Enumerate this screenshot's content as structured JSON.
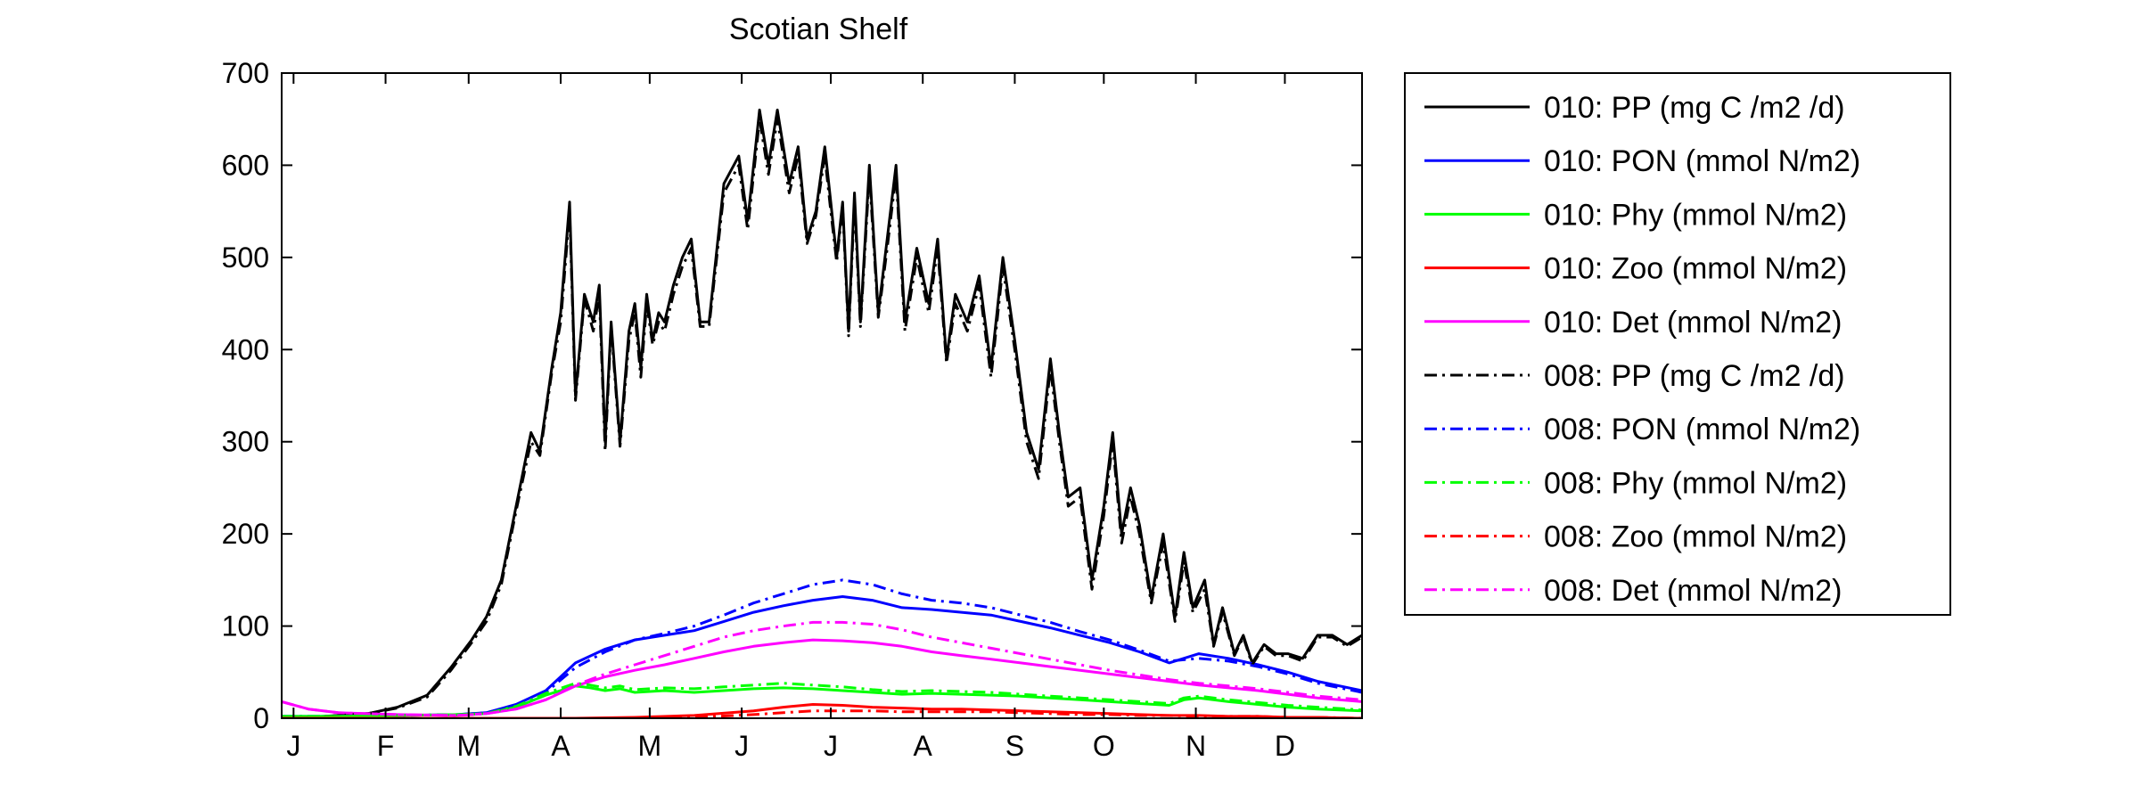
{
  "chart_data": {
    "type": "line",
    "title": "Scotian Shelf",
    "xlabel": "",
    "ylabel": "",
    "x_ticks": [
      "J",
      "F",
      "M",
      "A",
      "M",
      "J",
      "J",
      "A",
      "S",
      "O",
      "N",
      "D"
    ],
    "x_tick_days": [
      5,
      36,
      64,
      95,
      125,
      156,
      186,
      217,
      248,
      278,
      309,
      339
    ],
    "xlim": [
      1,
      365
    ],
    "ylim": [
      0,
      700
    ],
    "y_ticks": [
      0,
      100,
      200,
      300,
      400,
      500,
      600,
      700
    ],
    "grid": false,
    "legend_position": "outside-right",
    "series": [
      {
        "name": "010: PP (mg C /m2 /d)",
        "color": "#000000",
        "dash": "solid",
        "x": [
          1,
          15,
          30,
          40,
          50,
          58,
          65,
          70,
          75,
          80,
          85,
          88,
          92,
          95,
          98,
          100,
          103,
          106,
          108,
          110,
          112,
          115,
          118,
          120,
          122,
          124,
          126,
          128,
          130,
          133,
          136,
          139,
          142,
          145,
          150,
          155,
          158,
          162,
          165,
          168,
          172,
          175,
          178,
          181,
          184,
          186,
          188,
          190,
          192,
          194,
          196,
          199,
          202,
          205,
          208,
          211,
          215,
          219,
          222,
          225,
          228,
          232,
          236,
          240,
          244,
          248,
          252,
          256,
          260,
          263,
          266,
          270,
          274,
          278,
          281,
          284,
          287,
          290,
          294,
          298,
          302,
          305,
          308,
          312,
          315,
          318,
          322,
          325,
          328,
          332,
          336,
          340,
          345,
          350,
          355,
          360,
          365
        ],
        "y": [
          0,
          2,
          5,
          12,
          25,
          55,
          85,
          110,
          150,
          230,
          310,
          290,
          380,
          440,
          560,
          350,
          460,
          430,
          470,
          300,
          430,
          300,
          420,
          450,
          380,
          460,
          410,
          440,
          430,
          470,
          500,
          520,
          430,
          430,
          580,
          610,
          540,
          660,
          600,
          660,
          580,
          620,
          520,
          550,
          620,
          560,
          500,
          560,
          420,
          570,
          430,
          600,
          440,
          520,
          600,
          430,
          510,
          450,
          520,
          390,
          460,
          430,
          480,
          380,
          500,
          410,
          310,
          270,
          390,
          310,
          240,
          250,
          150,
          230,
          310,
          200,
          250,
          210,
          130,
          200,
          110,
          180,
          120,
          150,
          80,
          120,
          70,
          90,
          60,
          80,
          70,
          70,
          65,
          90,
          90,
          80,
          90
        ]
      },
      {
        "name": "010: PON (mmol N/m2)",
        "color": "#0000FF",
        "dash": "solid",
        "x": [
          1,
          20,
          40,
          60,
          70,
          80,
          90,
          100,
          110,
          120,
          130,
          140,
          150,
          160,
          170,
          180,
          190,
          200,
          210,
          220,
          230,
          240,
          250,
          260,
          270,
          280,
          290,
          300,
          310,
          320,
          330,
          340,
          350,
          365
        ],
        "y": [
          2,
          2,
          3,
          4,
          6,
          15,
          30,
          60,
          75,
          85,
          90,
          95,
          105,
          115,
          122,
          128,
          132,
          128,
          120,
          118,
          115,
          112,
          105,
          98,
          90,
          82,
          72,
          60,
          70,
          65,
          58,
          50,
          40,
          30
        ]
      },
      {
        "name": "010: Phy (mmol N/m2)",
        "color": "#00FF00",
        "dash": "solid",
        "x": [
          1,
          20,
          40,
          60,
          70,
          80,
          90,
          100,
          105,
          110,
          115,
          120,
          130,
          140,
          150,
          160,
          170,
          180,
          190,
          200,
          210,
          220,
          230,
          240,
          250,
          260,
          270,
          280,
          290,
          300,
          305,
          310,
          320,
          330,
          340,
          350,
          365
        ],
        "y": [
          2,
          2,
          3,
          4,
          5,
          12,
          25,
          35,
          33,
          30,
          32,
          28,
          30,
          28,
          30,
          32,
          33,
          32,
          30,
          28,
          26,
          27,
          26,
          25,
          24,
          22,
          20,
          18,
          16,
          14,
          20,
          22,
          18,
          15,
          12,
          10,
          8
        ]
      },
      {
        "name": "010: Zoo (mmol N/m2)",
        "color": "#FF0000",
        "dash": "solid",
        "x": [
          1,
          60,
          100,
          120,
          140,
          160,
          170,
          180,
          190,
          200,
          210,
          220,
          230,
          240,
          250,
          260,
          270,
          280,
          290,
          300,
          310,
          320,
          330,
          340,
          350,
          365
        ],
        "y": [
          0,
          0,
          0,
          1,
          3,
          8,
          12,
          15,
          14,
          12,
          11,
          10,
          10,
          9,
          8,
          7,
          6,
          5,
          4,
          3,
          3,
          2,
          2,
          1,
          1,
          0
        ]
      },
      {
        "name": "010: Det (mmol N/m2)",
        "color": "#FF00FF",
        "dash": "solid",
        "x": [
          1,
          10,
          20,
          40,
          60,
          70,
          80,
          90,
          100,
          110,
          120,
          130,
          140,
          150,
          160,
          170,
          180,
          190,
          200,
          210,
          220,
          230,
          240,
          250,
          260,
          270,
          280,
          290,
          300,
          310,
          320,
          330,
          340,
          350,
          365
        ],
        "y": [
          18,
          10,
          6,
          4,
          3,
          5,
          10,
          20,
          35,
          45,
          52,
          58,
          65,
          72,
          78,
          82,
          85,
          84,
          82,
          78,
          72,
          68,
          64,
          60,
          56,
          52,
          48,
          44,
          40,
          36,
          33,
          30,
          26,
          22,
          18
        ]
      },
      {
        "name": "008: PP (mg C /m2 /d)",
        "color": "#000000",
        "dash": "dashdot",
        "x": [
          1,
          15,
          30,
          40,
          50,
          58,
          65,
          70,
          75,
          80,
          85,
          88,
          92,
          95,
          98,
          100,
          103,
          106,
          108,
          110,
          112,
          115,
          118,
          120,
          122,
          124,
          126,
          128,
          130,
          133,
          136,
          139,
          142,
          145,
          150,
          155,
          158,
          162,
          165,
          168,
          172,
          175,
          178,
          181,
          184,
          186,
          188,
          190,
          192,
          194,
          196,
          199,
          202,
          205,
          208,
          211,
          215,
          219,
          222,
          225,
          228,
          232,
          236,
          240,
          244,
          248,
          252,
          256,
          260,
          263,
          266,
          270,
          274,
          278,
          281,
          284,
          287,
          290,
          294,
          298,
          302,
          305,
          308,
          312,
          315,
          318,
          322,
          325,
          328,
          332,
          336,
          340,
          345,
          350,
          355,
          360,
          365
        ],
        "y": [
          0,
          2,
          5,
          11,
          23,
          52,
          82,
          105,
          145,
          225,
          300,
          285,
          375,
          430,
          550,
          345,
          455,
          420,
          460,
          290,
          425,
          295,
          410,
          440,
          370,
          450,
          405,
          430,
          420,
          460,
          490,
          510,
          425,
          425,
          570,
          600,
          530,
          650,
          590,
          650,
          570,
          610,
          515,
          545,
          610,
          550,
          495,
          555,
          415,
          560,
          425,
          590,
          435,
          510,
          590,
          420,
          500,
          440,
          510,
          385,
          450,
          420,
          470,
          370,
          490,
          400,
          300,
          260,
          380,
          300,
          230,
          240,
          140,
          220,
          300,
          190,
          240,
          200,
          125,
          190,
          105,
          170,
          115,
          140,
          78,
          115,
          68,
          88,
          58,
          78,
          68,
          68,
          62,
          88,
          88,
          78,
          88
        ]
      },
      {
        "name": "008: PON (mmol N/m2)",
        "color": "#0000FF",
        "dash": "dashdot",
        "x": [
          1,
          20,
          40,
          60,
          70,
          80,
          90,
          100,
          110,
          120,
          130,
          140,
          150,
          160,
          170,
          180,
          190,
          200,
          210,
          220,
          230,
          240,
          250,
          260,
          270,
          280,
          290,
          300,
          310,
          320,
          330,
          340,
          350,
          365
        ],
        "y": [
          2,
          2,
          3,
          4,
          6,
          14,
          28,
          55,
          72,
          85,
          92,
          100,
          112,
          125,
          135,
          145,
          150,
          145,
          135,
          128,
          125,
          120,
          112,
          104,
          94,
          85,
          74,
          62,
          65,
          62,
          56,
          48,
          38,
          28
        ]
      },
      {
        "name": "008: Phy (mmol N/m2)",
        "color": "#00FF00",
        "dash": "dashdot",
        "x": [
          1,
          20,
          40,
          60,
          70,
          80,
          90,
          100,
          105,
          110,
          115,
          120,
          130,
          140,
          150,
          160,
          170,
          180,
          190,
          200,
          210,
          220,
          230,
          240,
          250,
          260,
          270,
          280,
          290,
          300,
          305,
          310,
          320,
          330,
          340,
          350,
          365
        ],
        "y": [
          2,
          2,
          3,
          4,
          5,
          13,
          27,
          38,
          36,
          33,
          35,
          31,
          33,
          32,
          34,
          36,
          38,
          36,
          34,
          31,
          29,
          30,
          29,
          28,
          26,
          24,
          22,
          20,
          18,
          16,
          22,
          24,
          20,
          17,
          14,
          12,
          9
        ]
      },
      {
        "name": "008: Zoo (mmol N/m2)",
        "color": "#FF0000",
        "dash": "dashdot",
        "x": [
          1,
          60,
          100,
          120,
          140,
          160,
          170,
          180,
          190,
          200,
          210,
          220,
          230,
          240,
          250,
          260,
          270,
          280,
          290,
          300,
          310,
          320,
          330,
          340,
          350,
          365
        ],
        "y": [
          0,
          0,
          0,
          0,
          1,
          4,
          6,
          8,
          8,
          8,
          7,
          7,
          7,
          7,
          6,
          5,
          4,
          4,
          3,
          3,
          2,
          2,
          2,
          1,
          1,
          0
        ]
      },
      {
        "name": "008: Det (mmol N/m2)",
        "color": "#FF00FF",
        "dash": "dashdot",
        "x": [
          1,
          10,
          20,
          40,
          60,
          70,
          80,
          90,
          100,
          110,
          120,
          130,
          140,
          150,
          160,
          170,
          180,
          190,
          200,
          210,
          220,
          230,
          240,
          250,
          260,
          270,
          280,
          290,
          300,
          310,
          320,
          330,
          340,
          350,
          365
        ],
        "y": [
          18,
          10,
          6,
          4,
          3,
          5,
          10,
          20,
          36,
          48,
          58,
          68,
          78,
          88,
          95,
          100,
          104,
          104,
          102,
          96,
          88,
          82,
          76,
          70,
          64,
          58,
          52,
          47,
          42,
          38,
          35,
          32,
          28,
          24,
          20
        ]
      }
    ]
  }
}
